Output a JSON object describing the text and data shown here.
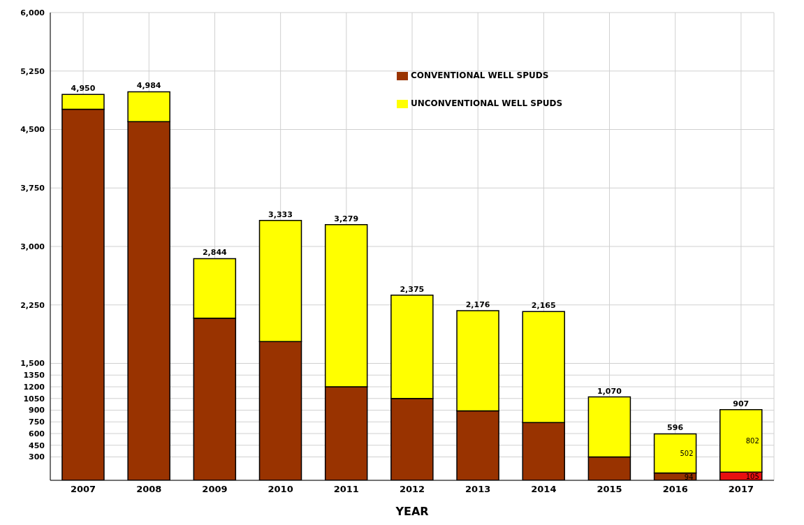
{
  "chart_data": {
    "type": "bar",
    "stacked": true,
    "xlabel": "YEAR",
    "categories": [
      "2007",
      "2008",
      "2009",
      "2010",
      "2011",
      "2012",
      "2013",
      "2014",
      "2015",
      "2016",
      "2017"
    ],
    "series": [
      {
        "name": "CONVENTIONAL WELL SPUDS",
        "color": "#993300",
        "colors": [
          "#993300",
          "#993300",
          "#993300",
          "#993300",
          "#993300",
          "#993300",
          "#993300",
          "#993300",
          "#993300",
          "#993300",
          "#e81010"
        ],
        "values": [
          4760,
          4600,
          2080,
          1780,
          1200,
          1050,
          890,
          740,
          300,
          94,
          105
        ],
        "value_labels": [
          null,
          null,
          null,
          null,
          null,
          null,
          null,
          null,
          null,
          "94",
          "105"
        ]
      },
      {
        "name": "UNCONVENTIONAL WELL SPUDS",
        "color": "#ffff00",
        "values": [
          190,
          384,
          764,
          1553,
          2079,
          1325,
          1286,
          1425,
          770,
          502,
          802
        ],
        "value_labels": [
          null,
          null,
          null,
          null,
          null,
          null,
          null,
          null,
          null,
          "502",
          "802"
        ]
      }
    ],
    "totals": [
      "4,950",
      "4,984",
      "2,844",
      "3,333",
      "3,279",
      "2,375",
      "2,176",
      "2,165",
      "1,070",
      "596",
      "907"
    ],
    "ylim": [
      0,
      6000
    ],
    "yticks": [
      300,
      450,
      600,
      750,
      900,
      1050,
      1200,
      1350,
      {
        "value": 1500,
        "label": "1,500"
      },
      {
        "value": 2250,
        "label": "2,250"
      },
      {
        "value": 3000,
        "label": "3,000"
      },
      {
        "value": 3750,
        "label": "3,750"
      },
      {
        "value": 4500,
        "label": "4,500"
      },
      {
        "value": 5250,
        "label": "5,250"
      },
      {
        "value": 6000,
        "label": "6,000"
      }
    ],
    "grid": true,
    "legend": "top"
  }
}
